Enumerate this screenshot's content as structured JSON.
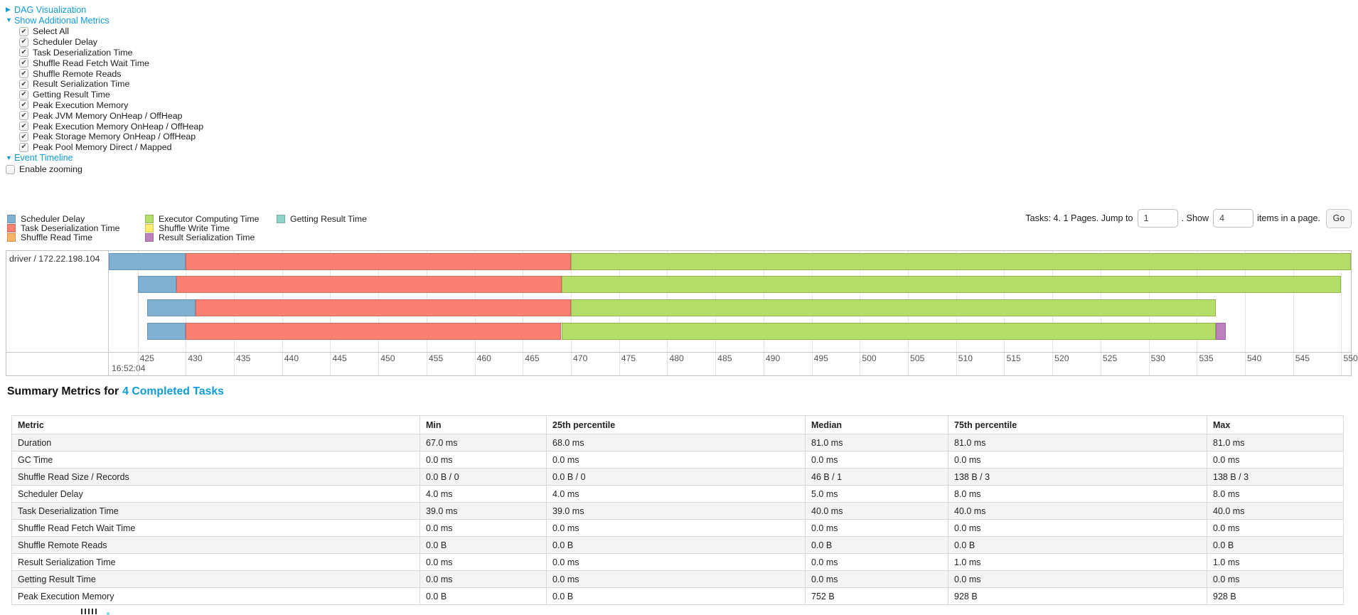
{
  "colors": {
    "link": "#0f9bd7",
    "scheduler": "#80B1D3",
    "scheduler_border": "#6B94B0",
    "deserialization": "#FB8072",
    "deserialization_border": "#D26B5F",
    "shuffle_read": "#FDB462",
    "executor": "#B3DE69",
    "executor_border": "#95B447",
    "shuffle_write": "#FFED6F",
    "result_serialization": "#BC80BD",
    "result_serialization_border": "#9A65A4",
    "getting_result": "#8DD3C7"
  },
  "toggles": {
    "dag_label": "DAG Visualization",
    "metrics_label": "Show Additional Metrics",
    "event_timeline_label": "Event Timeline"
  },
  "metrics": {
    "items": [
      {
        "label": "Select All",
        "checked": true
      },
      {
        "label": "Scheduler Delay",
        "checked": true
      },
      {
        "label": "Task Deserialization Time",
        "checked": true
      },
      {
        "label": "Shuffle Read Fetch Wait Time",
        "checked": true
      },
      {
        "label": "Shuffle Remote Reads",
        "checked": true
      },
      {
        "label": "Result Serialization Time",
        "checked": true
      },
      {
        "label": "Getting Result Time",
        "checked": true
      },
      {
        "label": "Peak Execution Memory",
        "checked": true
      },
      {
        "label": "Peak JVM Memory OnHeap / OffHeap",
        "checked": true
      },
      {
        "label": "Peak Execution Memory OnHeap / OffHeap",
        "checked": true
      },
      {
        "label": "Peak Storage Memory OnHeap / OffHeap",
        "checked": true
      },
      {
        "label": "Peak Pool Memory Direct / Mapped",
        "checked": true
      }
    ]
  },
  "enable_zooming": {
    "label": "Enable zooming",
    "checked": false
  },
  "legend": {
    "columns": [
      [
        {
          "label": "Scheduler Delay",
          "color": "#80B1D3"
        },
        {
          "label": "Task Deserialization Time",
          "color": "#FB8072"
        },
        {
          "label": "Shuffle Read Time",
          "color": "#FDB462"
        }
      ],
      [
        {
          "label": "Executor Computing Time",
          "color": "#B3DE69"
        },
        {
          "label": "Shuffle Write Time",
          "color": "#FFED6F"
        },
        {
          "label": "Result Serialization Time",
          "color": "#BC80BD"
        }
      ],
      [
        {
          "label": "Getting Result Time",
          "color": "#8DD3C7"
        }
      ]
    ]
  },
  "pagination": {
    "tasks_text": "Tasks: 4. 1 Pages. Jump to",
    "jump_value": "1",
    "show_text": ". Show",
    "show_value": "4",
    "items_text": "items in a page.",
    "go_label": "Go"
  },
  "timeline": {
    "row_label": "driver / 172.22.198.104",
    "axis": {
      "min_ms": 422,
      "max_ms": 551,
      "tick_start": 425,
      "tick_end": 550,
      "tick_step": 5,
      "major_label": "16:52:04"
    },
    "tasks": [
      {
        "segments": [
          {
            "type": "scheduler",
            "start": 422,
            "end": 430
          },
          {
            "type": "deserialization",
            "start": 430,
            "end": 470
          },
          {
            "type": "executor",
            "start": 470,
            "end": 551
          }
        ]
      },
      {
        "segments": [
          {
            "type": "scheduler",
            "start": 425,
            "end": 429
          },
          {
            "type": "deserialization",
            "start": 429,
            "end": 469
          },
          {
            "type": "executor",
            "start": 469,
            "end": 550
          }
        ]
      },
      {
        "segments": [
          {
            "type": "scheduler",
            "start": 426,
            "end": 431
          },
          {
            "type": "deserialization",
            "start": 431,
            "end": 470
          },
          {
            "type": "executor",
            "start": 470,
            "end": 537
          }
        ]
      },
      {
        "segments": [
          {
            "type": "scheduler",
            "start": 426,
            "end": 430
          },
          {
            "type": "deserialization",
            "start": 430,
            "end": 469
          },
          {
            "type": "executor",
            "start": 469,
            "end": 537
          },
          {
            "type": "result_serialization",
            "start": 537,
            "end": 538
          }
        ]
      }
    ]
  },
  "summary": {
    "title_prefix": "Summary Metrics for",
    "title_link": "4 Completed Tasks"
  },
  "summary_table": {
    "headers": [
      "Metric",
      "Min",
      "25th percentile",
      "Median",
      "75th percentile",
      "Max"
    ],
    "rows": [
      [
        "Duration",
        "67.0 ms",
        "68.0 ms",
        "81.0 ms",
        "81.0 ms",
        "81.0 ms"
      ],
      [
        "GC Time",
        "0.0 ms",
        "0.0 ms",
        "0.0 ms",
        "0.0 ms",
        "0.0 ms"
      ],
      [
        "Shuffle Read Size / Records",
        "0.0 B / 0",
        "0.0 B / 0",
        "46 B / 1",
        "138 B / 3",
        "138 B / 3"
      ],
      [
        "Scheduler Delay",
        "4.0 ms",
        "4.0 ms",
        "5.0 ms",
        "8.0 ms",
        "8.0 ms"
      ],
      [
        "Task Deserialization Time",
        "39.0 ms",
        "39.0 ms",
        "40.0 ms",
        "40.0 ms",
        "40.0 ms"
      ],
      [
        "Shuffle Read Fetch Wait Time",
        "0.0 ms",
        "0.0 ms",
        "0.0 ms",
        "0.0 ms",
        "0.0 ms"
      ],
      [
        "Shuffle Remote Reads",
        "0.0 B",
        "0.0 B",
        "0.0 B",
        "0.0 B",
        "0.0 B"
      ],
      [
        "Result Serialization Time",
        "0.0 ms",
        "0.0 ms",
        "0.0 ms",
        "1.0 ms",
        "1.0 ms"
      ],
      [
        "Getting Result Time",
        "0.0 ms",
        "0.0 ms",
        "0.0 ms",
        "0.0 ms",
        "0.0 ms"
      ],
      [
        "Peak Execution Memory",
        "0.0 B",
        "0.0 B",
        "752 B",
        "928 B",
        "928 B"
      ]
    ]
  }
}
